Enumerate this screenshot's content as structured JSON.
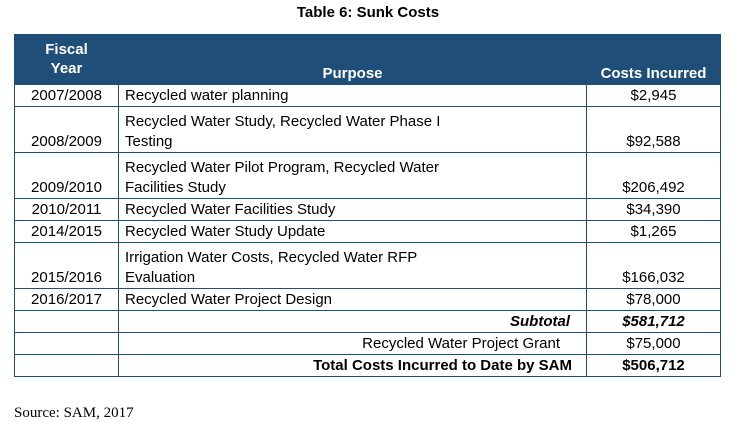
{
  "title": "Table 6: Sunk Costs",
  "headers": {
    "fiscal_year_line1": "Fiscal",
    "fiscal_year_line2": "Year",
    "purpose": "Purpose",
    "costs": "Costs Incurred"
  },
  "rows": [
    {
      "year": "2007/2008",
      "purpose_line1": "Recycled water planning",
      "purpose_line2": "",
      "cost": "$2,945"
    },
    {
      "year": "2008/2009",
      "purpose_line1": "Recycled Water Study, Recycled Water Phase I",
      "purpose_line2": "Testing",
      "cost": "$92,588"
    },
    {
      "year": "2009/2010",
      "purpose_line1": "Recycled Water Pilot Program, Recycled Water",
      "purpose_line2": "Facilities Study",
      "cost": "$206,492"
    },
    {
      "year": "2010/2011",
      "purpose_line1": "Recycled Water Facilities Study",
      "purpose_line2": "",
      "cost": "$34,390"
    },
    {
      "year": "2014/2015",
      "purpose_line1": "Recycled Water Study Update",
      "purpose_line2": "",
      "cost": "$1,265"
    },
    {
      "year": "2015/2016",
      "purpose_line1": "Irrigation Water Costs, Recycled Water RFP",
      "purpose_line2": "Evaluation",
      "cost": "$166,032"
    },
    {
      "year": "2016/2017",
      "purpose_line1": "Recycled Water Project Design",
      "purpose_line2": "",
      "cost": "$78,000"
    }
  ],
  "subtotal": {
    "label": "Subtotal",
    "value": "$581,712"
  },
  "grant": {
    "label": "Recycled Water Project Grant",
    "value": "$75,000"
  },
  "total": {
    "label": "Total Costs Incurred to Date by SAM",
    "value": "$506,712"
  },
  "source": "Source: SAM, 2017",
  "colors": {
    "header_bg": "#1f4e79",
    "header_text": "#ffffff",
    "border": "#1f4e79"
  }
}
